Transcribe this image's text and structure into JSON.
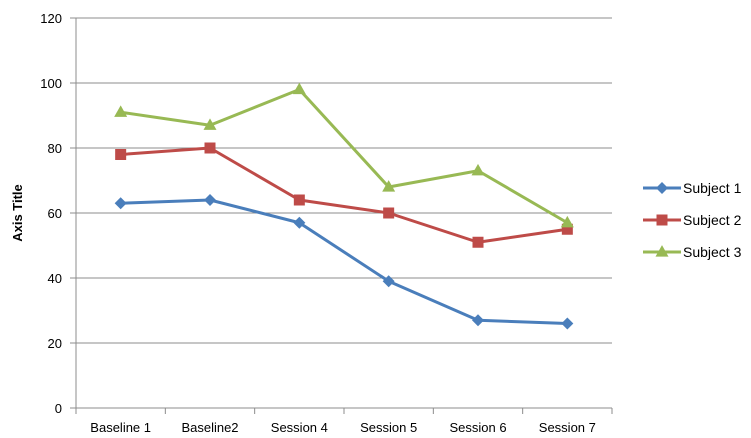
{
  "chart_data": {
    "type": "line",
    "categories": [
      "Baseline 1",
      "Baseline2",
      "Session 4",
      "Session 5",
      "Session 6",
      "Session 7"
    ],
    "ylabel": "Axis Title",
    "xlabel": "",
    "ylim": [
      0,
      120
    ],
    "yticks": [
      0,
      20,
      40,
      60,
      80,
      100,
      120
    ],
    "grid": true,
    "legend_position": "right",
    "series": [
      {
        "name": "Subject 1",
        "values": [
          63,
          64,
          57,
          39,
          27,
          26
        ],
        "color": "#4a7ebb",
        "marker": "diamond"
      },
      {
        "name": "Subject 2",
        "values": [
          78,
          80,
          64,
          60,
          51,
          55
        ],
        "color": "#be4b48",
        "marker": "square"
      },
      {
        "name": "Subject 3",
        "values": [
          91,
          87,
          98,
          68,
          73,
          57
        ],
        "color": "#98b954",
        "marker": "triangle"
      }
    ]
  }
}
